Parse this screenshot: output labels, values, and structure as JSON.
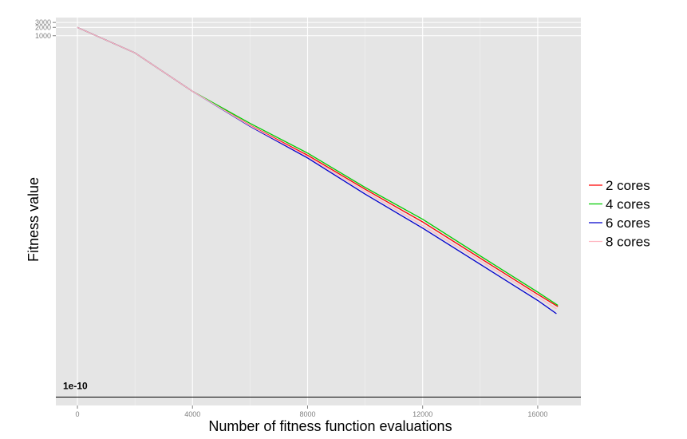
{
  "chart_data": {
    "type": "line",
    "xlabel": "Number of fitness function evaluations",
    "ylabel": "Fitness value",
    "x_ticks": [
      0,
      4000,
      8000,
      12000,
      16000
    ],
    "x_tick_labels": [
      "0",
      "4000",
      "8000",
      "12000",
      "16000"
    ],
    "xlim": [
      -750,
      17500
    ],
    "y_scale": "log10",
    "y_ticks": [
      1000,
      2000,
      3000
    ],
    "y_tick_labels": [
      "1000",
      "2000",
      "3000"
    ],
    "ylim": [
      5e-11,
      4500
    ],
    "grid": true,
    "legend_position": "right",
    "reference_line": {
      "y": 1e-10,
      "label": "1e-10"
    },
    "series": [
      {
        "name": "2 cores",
        "color": "#ff0000",
        "x": [
          0,
          2000,
          4000,
          6000,
          8000,
          10000,
          12000,
          14000,
          16000,
          16700
        ],
        "y": [
          2000,
          240,
          10,
          0.6,
          0.05,
          0.003,
          0.0002,
          1e-05,
          5e-07,
          1.8e-07
        ]
      },
      {
        "name": "4 cores",
        "color": "#00cc00",
        "x": [
          0,
          2000,
          4000,
          6000,
          8000,
          10000,
          12000,
          14000,
          16000,
          16700
        ],
        "y": [
          2000,
          240,
          10,
          0.7,
          0.06,
          0.0035,
          0.00025,
          1.2e-05,
          6e-07,
          2e-07
        ]
      },
      {
        "name": "6 cores",
        "color": "#0000cc",
        "x": [
          0,
          2000,
          4000,
          6000,
          8000,
          10000,
          12000,
          14000,
          16000,
          16650
        ],
        "y": [
          2000,
          240,
          10,
          0.55,
          0.04,
          0.002,
          0.00012,
          6e-06,
          3e-07,
          1e-07
        ]
      },
      {
        "name": "8 cores",
        "color": "#ffb6c1",
        "x": [
          0,
          2000,
          4000,
          6000,
          8000,
          10000,
          12000,
          14000,
          16000,
          16650
        ],
        "y": [
          2000,
          240,
          10,
          0.58,
          0.045,
          0.0025,
          0.00015,
          8e-06,
          4e-07,
          1.5e-07
        ]
      }
    ]
  }
}
